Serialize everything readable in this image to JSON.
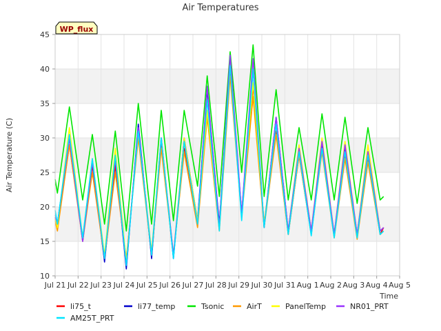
{
  "chart_data": {
    "type": "line",
    "title": "Air Temperatures",
    "xlabel": "Time",
    "ylabel": "Air Temperature (C)",
    "site_badge": "WP_flux",
    "ylim": [
      10,
      45
    ],
    "yticks": [
      10,
      15,
      20,
      25,
      30,
      35,
      40,
      45
    ],
    "xlim": [
      0,
      15
    ],
    "xticks": [
      {
        "v": 0,
        "label": "Jul 21"
      },
      {
        "v": 1,
        "label": "Jul 22"
      },
      {
        "v": 2,
        "label": "Jul 23"
      },
      {
        "v": 3,
        "label": "Jul 24"
      },
      {
        "v": 4,
        "label": "Jul 25"
      },
      {
        "v": 5,
        "label": "Jul 26"
      },
      {
        "v": 6,
        "label": "Jul 27"
      },
      {
        "v": 7,
        "label": "Jul 28"
      },
      {
        "v": 8,
        "label": "Jul 29"
      },
      {
        "v": 9,
        "label": "Jul 30"
      },
      {
        "v": 10,
        "label": "Jul 31"
      },
      {
        "v": 11,
        "label": "Aug 1"
      },
      {
        "v": 12,
        "label": "Aug 2"
      },
      {
        "v": 13,
        "label": "Aug 3"
      },
      {
        "v": 14,
        "label": "Aug 4"
      },
      {
        "v": 15,
        "label": "Aug 5"
      }
    ],
    "grid": true,
    "legend_position": "bottom",
    "daily_extremes_note_x_is_days_after_Jul21": true,
    "series": [
      {
        "name": "li75_t",
        "color": "#ff0000",
        "x": [
          0.0,
          0.1,
          0.62,
          1.2,
          1.62,
          2.15,
          2.62,
          3.1,
          3.62,
          4.2,
          4.62,
          5.15,
          5.62,
          6.2,
          6.62,
          7.15,
          7.62,
          8.12,
          8.62,
          9.1,
          9.62,
          10.15,
          10.62,
          11.15,
          11.62,
          12.15,
          12.62,
          13.15,
          13.62,
          14.15,
          14.3
        ],
        "y": [
          18.3,
          17,
          29,
          15.5,
          26,
          12.5,
          26,
          12,
          31,
          13,
          29.5,
          13,
          28.5,
          17.5,
          33.5,
          17,
          40,
          19,
          37.5,
          17.5,
          31,
          16,
          27.5,
          16,
          28.5,
          15.8,
          27.5,
          15.5,
          27,
          16,
          17
        ]
      },
      {
        "name": "li77_temp",
        "color": "#0000cc",
        "x": [
          0.0,
          0.1,
          0.62,
          1.2,
          1.62,
          2.15,
          2.62,
          3.1,
          3.62,
          4.2,
          4.62,
          5.15,
          5.62,
          6.2,
          6.62,
          7.15,
          7.62,
          8.12,
          8.62,
          9.1,
          9.62,
          10.15,
          10.62,
          11.15,
          11.62,
          12.15,
          12.62,
          13.15,
          13.62,
          14.15,
          14.3
        ],
        "y": [
          18.5,
          17.5,
          30,
          15,
          26.5,
          12,
          27,
          11,
          32,
          12.5,
          30,
          12.5,
          30,
          18,
          37,
          17.5,
          41,
          19,
          40,
          17,
          33,
          16.5,
          28.5,
          16.5,
          29,
          16,
          28.5,
          16,
          28,
          16.5,
          17
        ]
      },
      {
        "name": "Tsonic",
        "color": "#00e600",
        "x": [
          0.0,
          0.1,
          0.62,
          1.2,
          1.62,
          2.15,
          2.62,
          3.1,
          3.62,
          4.2,
          4.62,
          5.15,
          5.62,
          6.2,
          6.62,
          7.15,
          7.62,
          8.12,
          8.62,
          9.1,
          9.62,
          10.15,
          10.62,
          11.15,
          11.62,
          12.15,
          12.62,
          13.15,
          13.62,
          14.15,
          14.3
        ],
        "y": [
          24,
          22,
          34.5,
          21,
          30.5,
          17.5,
          31,
          16.5,
          35,
          17.5,
          34,
          18,
          34,
          23,
          39,
          21.5,
          42.5,
          25,
          43.5,
          21.5,
          37,
          21,
          31.5,
          21,
          33.5,
          21,
          33,
          20.5,
          31.5,
          21,
          21.5
        ]
      },
      {
        "name": "AirT",
        "color": "#ff9900",
        "x": [
          0.0,
          0.1,
          0.62,
          1.2,
          1.62,
          2.15,
          2.62,
          3.1,
          3.62,
          4.2,
          4.62,
          5.15,
          5.62,
          6.2,
          6.62,
          7.15,
          7.62,
          8.12,
          8.62,
          9.1,
          9.62,
          10.15,
          10.62,
          11.15,
          11.62,
          12.15,
          12.62,
          13.15,
          13.62,
          14.15,
          14.3
        ],
        "y": [
          18,
          16.5,
          29,
          15,
          25,
          12.5,
          25,
          12.5,
          30,
          13,
          28.5,
          13,
          28,
          17,
          33,
          16.5,
          39,
          18.5,
          36,
          17,
          30.5,
          16,
          27.5,
          16,
          28,
          15.5,
          27,
          15.3,
          26.5,
          16,
          16.5
        ]
      },
      {
        "name": "PanelTemp",
        "color": "#ffff00",
        "x": [
          0.0,
          0.1,
          0.62,
          1.2,
          1.62,
          2.15,
          2.62,
          3.1,
          3.62,
          4.2,
          4.62,
          5.15,
          5.62,
          6.2,
          6.62,
          7.15,
          7.62,
          8.12,
          8.62,
          9.1,
          9.62,
          10.15,
          10.62,
          11.15,
          11.62,
          12.15,
          12.62,
          13.15,
          13.62,
          14.15,
          14.3
        ],
        "y": [
          18.5,
          17,
          31.5,
          15.5,
          27,
          13,
          28.5,
          12,
          31,
          13.5,
          30,
          13,
          30,
          18,
          34,
          17,
          41,
          19,
          38,
          17.5,
          32,
          16.5,
          29,
          16.5,
          30,
          16,
          29.5,
          16,
          29,
          16.5,
          17
        ]
      },
      {
        "name": "NR01_PRT",
        "color": "#9933ff",
        "x": [
          0.0,
          0.1,
          0.62,
          1.2,
          1.62,
          2.15,
          2.62,
          3.1,
          3.62,
          4.2,
          4.62,
          5.15,
          5.62,
          6.2,
          6.62,
          7.15,
          7.62,
          8.12,
          8.62,
          9.1,
          9.62,
          10.15,
          10.62,
          11.15,
          11.62,
          12.15,
          12.62,
          13.15,
          13.62,
          14.15,
          14.3
        ],
        "y": [
          18.8,
          17.5,
          30,
          15,
          26.5,
          12.5,
          27,
          11.5,
          31.5,
          13,
          30,
          13,
          29.5,
          17.5,
          37.5,
          17,
          42,
          19,
          41.5,
          17,
          33,
          16.5,
          28.5,
          16.5,
          29.5,
          16,
          29,
          16,
          28,
          16.5,
          17
        ]
      },
      {
        "name": "AM25T_PRT",
        "color": "#00e5ff",
        "x": [
          0.0,
          0.1,
          0.62,
          1.2,
          1.62,
          2.15,
          2.62,
          3.1,
          3.62,
          4.2,
          4.62,
          5.15,
          5.62,
          6.2,
          6.62,
          7.15,
          7.62,
          8.12,
          8.62,
          9.1,
          9.62,
          10.15,
          10.62,
          11.15,
          11.62,
          12.15,
          12.62,
          13.15,
          13.62,
          14.15,
          14.3
        ],
        "y": [
          19.5,
          17.5,
          30.5,
          15.5,
          27,
          12.5,
          27.5,
          11.5,
          31,
          13,
          30,
          12.5,
          29.5,
          17.5,
          35.5,
          16.5,
          40.5,
          18,
          40,
          17,
          32,
          16,
          28,
          15.8,
          28.5,
          15.5,
          28,
          15.5,
          27.5,
          16,
          16.5
        ]
      }
    ]
  }
}
